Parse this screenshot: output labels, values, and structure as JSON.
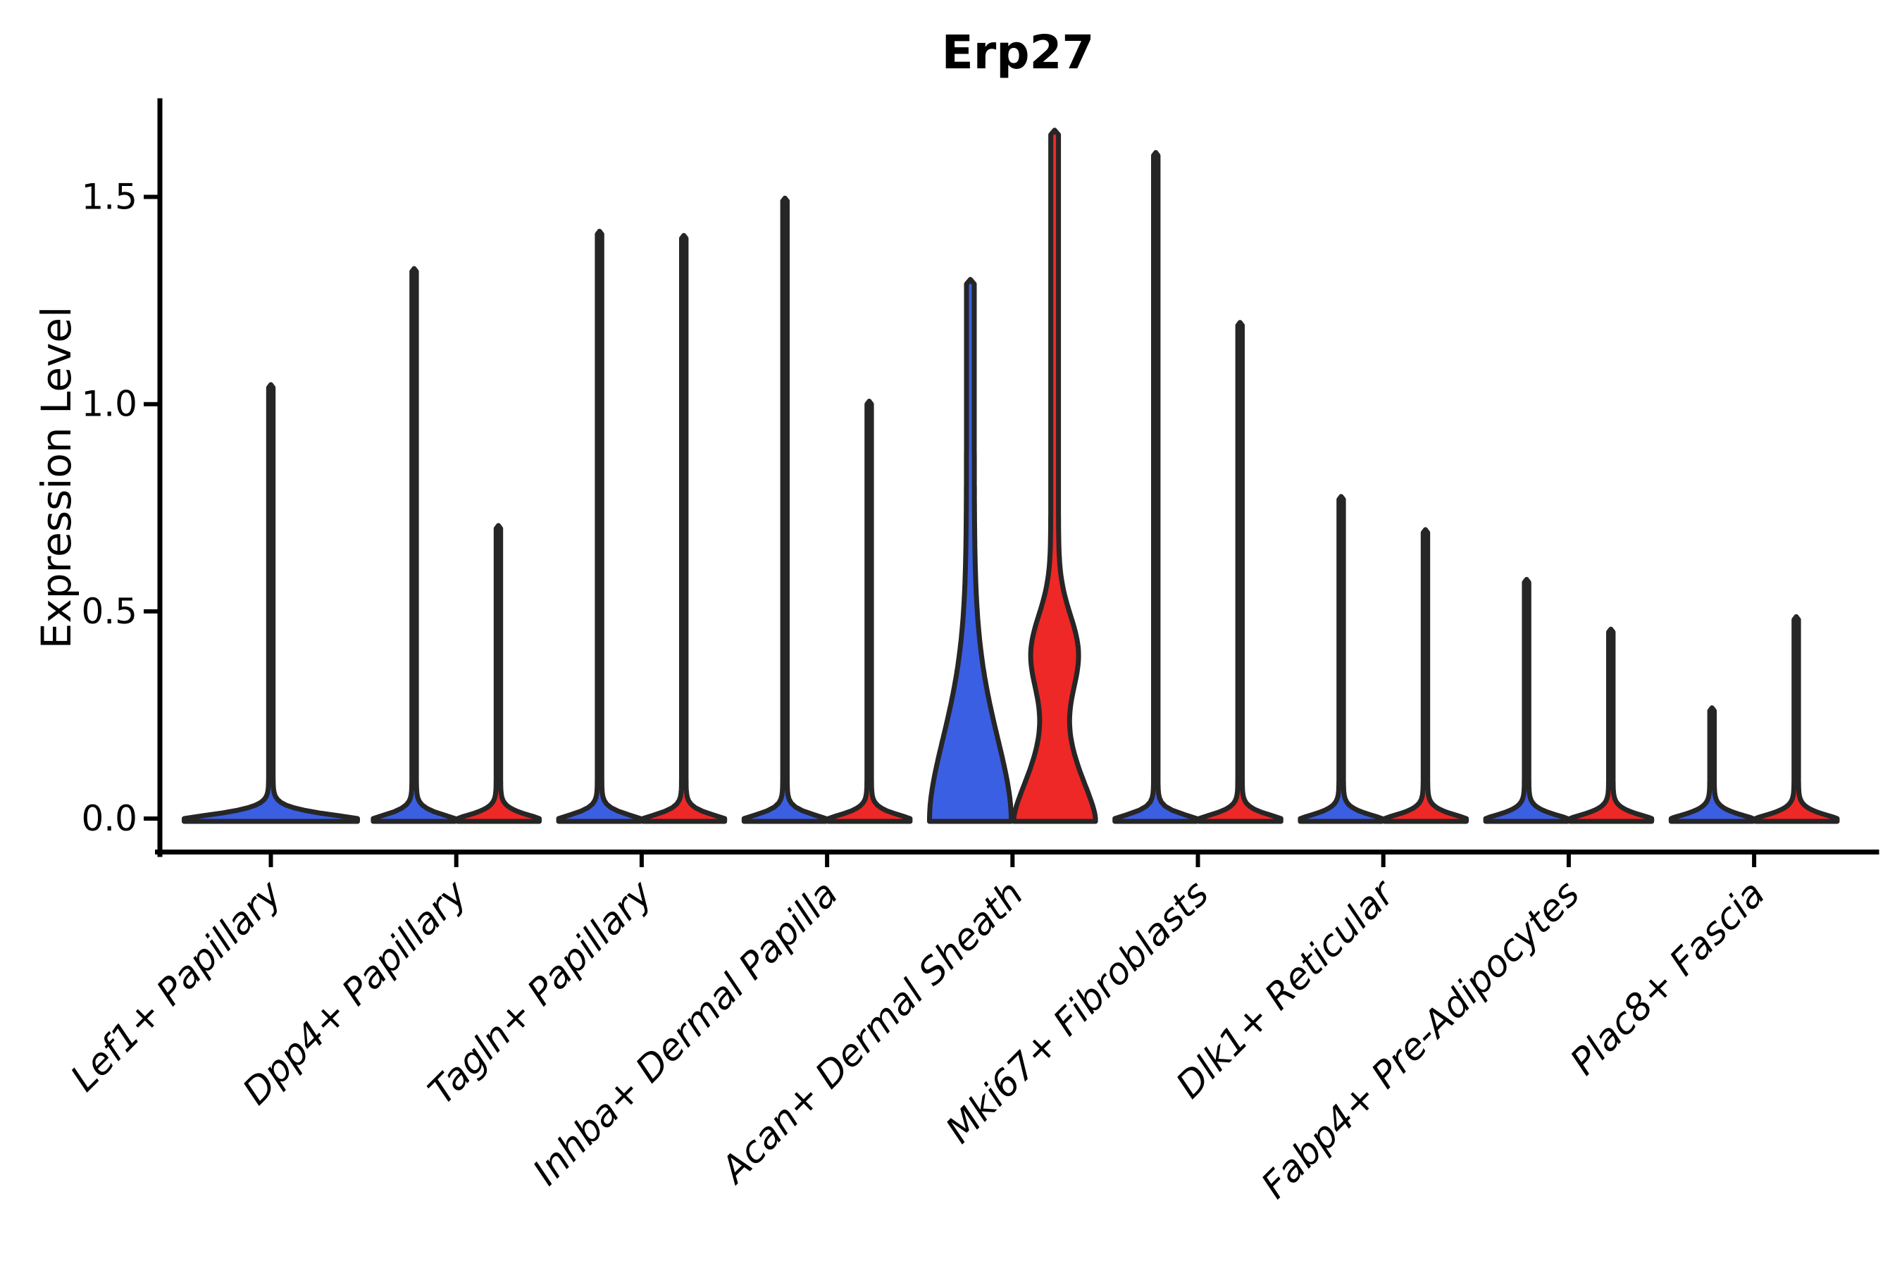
{
  "title": "Erp27",
  "chart_data": {
    "type": "violin",
    "title": "Erp27",
    "ylabel": "Expression Level",
    "xlabel": "",
    "ylim": [
      -0.08,
      1.73
    ],
    "yticks": [
      0.0,
      0.5,
      1.0,
      1.5
    ],
    "ytick_labels": [
      "0.0",
      "0.5",
      "1.0",
      "1.5"
    ],
    "grid": false,
    "legend_position": "none",
    "split_violin_groups": 2,
    "colors": {
      "left_group_fill": "#3B5FE3",
      "right_group_fill": "#EE2826",
      "violin_outline": "#262626",
      "axis": "#000000"
    },
    "categories": [
      {
        "label": "Lef1+ Papillary",
        "violins": [
          {
            "group": "full",
            "max_expression": 1.04,
            "base_hw": 123,
            "spike_hw": 3.2,
            "decay": 0.02,
            "power": 1.3,
            "bulge": null
          }
        ]
      },
      {
        "label": "Dpp4+ Papillary",
        "violins": [
          {
            "group": "left",
            "max_expression": 1.32,
            "base_hw": 58,
            "spike_hw": 3.2,
            "decay": 0.02,
            "power": 1.3,
            "bulge": null
          },
          {
            "group": "right",
            "max_expression": 0.7,
            "base_hw": 58,
            "spike_hw": 3.2,
            "decay": 0.02,
            "power": 1.3,
            "bulge": null
          }
        ]
      },
      {
        "label": "Tagln+ Papillary",
        "violins": [
          {
            "group": "left",
            "max_expression": 1.41,
            "base_hw": 58,
            "spike_hw": 3.2,
            "decay": 0.02,
            "power": 1.3,
            "bulge": null
          },
          {
            "group": "right",
            "max_expression": 1.4,
            "base_hw": 58,
            "spike_hw": 3.2,
            "decay": 0.02,
            "power": 1.3,
            "bulge": null
          }
        ]
      },
      {
        "label": "Inhba+ Dermal Papilla",
        "violins": [
          {
            "group": "left",
            "max_expression": 1.49,
            "base_hw": 58,
            "spike_hw": 3.2,
            "decay": 0.02,
            "power": 1.3,
            "bulge": null
          },
          {
            "group": "right",
            "max_expression": 1.0,
            "base_hw": 58,
            "spike_hw": 3.2,
            "decay": 0.02,
            "power": 1.3,
            "bulge": null
          }
        ]
      },
      {
        "label": "Acan+ Dermal Sheath",
        "violins": [
          {
            "group": "left",
            "max_expression": 1.29,
            "base_hw": 58,
            "spike_hw": 5.5,
            "decay": 0.3,
            "power": 1.8,
            "bulge": null
          },
          {
            "group": "right",
            "max_expression": 1.65,
            "base_hw": 58,
            "spike_hw": 5.5,
            "decay": 0.17,
            "power": 1.5,
            "bulge": {
              "amp": 27,
              "center": 0.4,
              "sd": 0.13
            }
          }
        ]
      },
      {
        "label": "Mki67+ Fibroblasts",
        "violins": [
          {
            "group": "left",
            "max_expression": 1.6,
            "base_hw": 58,
            "spike_hw": 3.2,
            "decay": 0.02,
            "power": 1.3,
            "bulge": null
          },
          {
            "group": "right",
            "max_expression": 1.19,
            "base_hw": 58,
            "spike_hw": 3.2,
            "decay": 0.02,
            "power": 1.3,
            "bulge": null
          }
        ]
      },
      {
        "label": "Dlk1+ Reticular",
        "violins": [
          {
            "group": "left",
            "max_expression": 0.77,
            "base_hw": 58,
            "spike_hw": 3.2,
            "decay": 0.02,
            "power": 1.3,
            "bulge": null
          },
          {
            "group": "right",
            "max_expression": 0.69,
            "base_hw": 58,
            "spike_hw": 3.2,
            "decay": 0.02,
            "power": 1.3,
            "bulge": null
          }
        ]
      },
      {
        "label": "Fabp4+ Pre-Adipocytes",
        "violins": [
          {
            "group": "left",
            "max_expression": 0.57,
            "base_hw": 58,
            "spike_hw": 3.2,
            "decay": 0.02,
            "power": 1.3,
            "bulge": null
          },
          {
            "group": "right",
            "max_expression": 0.45,
            "base_hw": 58,
            "spike_hw": 3.2,
            "decay": 0.02,
            "power": 1.3,
            "bulge": null
          }
        ]
      },
      {
        "label": "Plac8+ Fascia",
        "violins": [
          {
            "group": "left",
            "max_expression": 0.26,
            "base_hw": 58,
            "spike_hw": 3.2,
            "decay": 0.02,
            "power": 1.3,
            "bulge": null
          },
          {
            "group": "right",
            "max_expression": 0.48,
            "base_hw": 58,
            "spike_hw": 3.2,
            "decay": 0.02,
            "power": 1.3,
            "bulge": null
          }
        ]
      }
    ]
  }
}
